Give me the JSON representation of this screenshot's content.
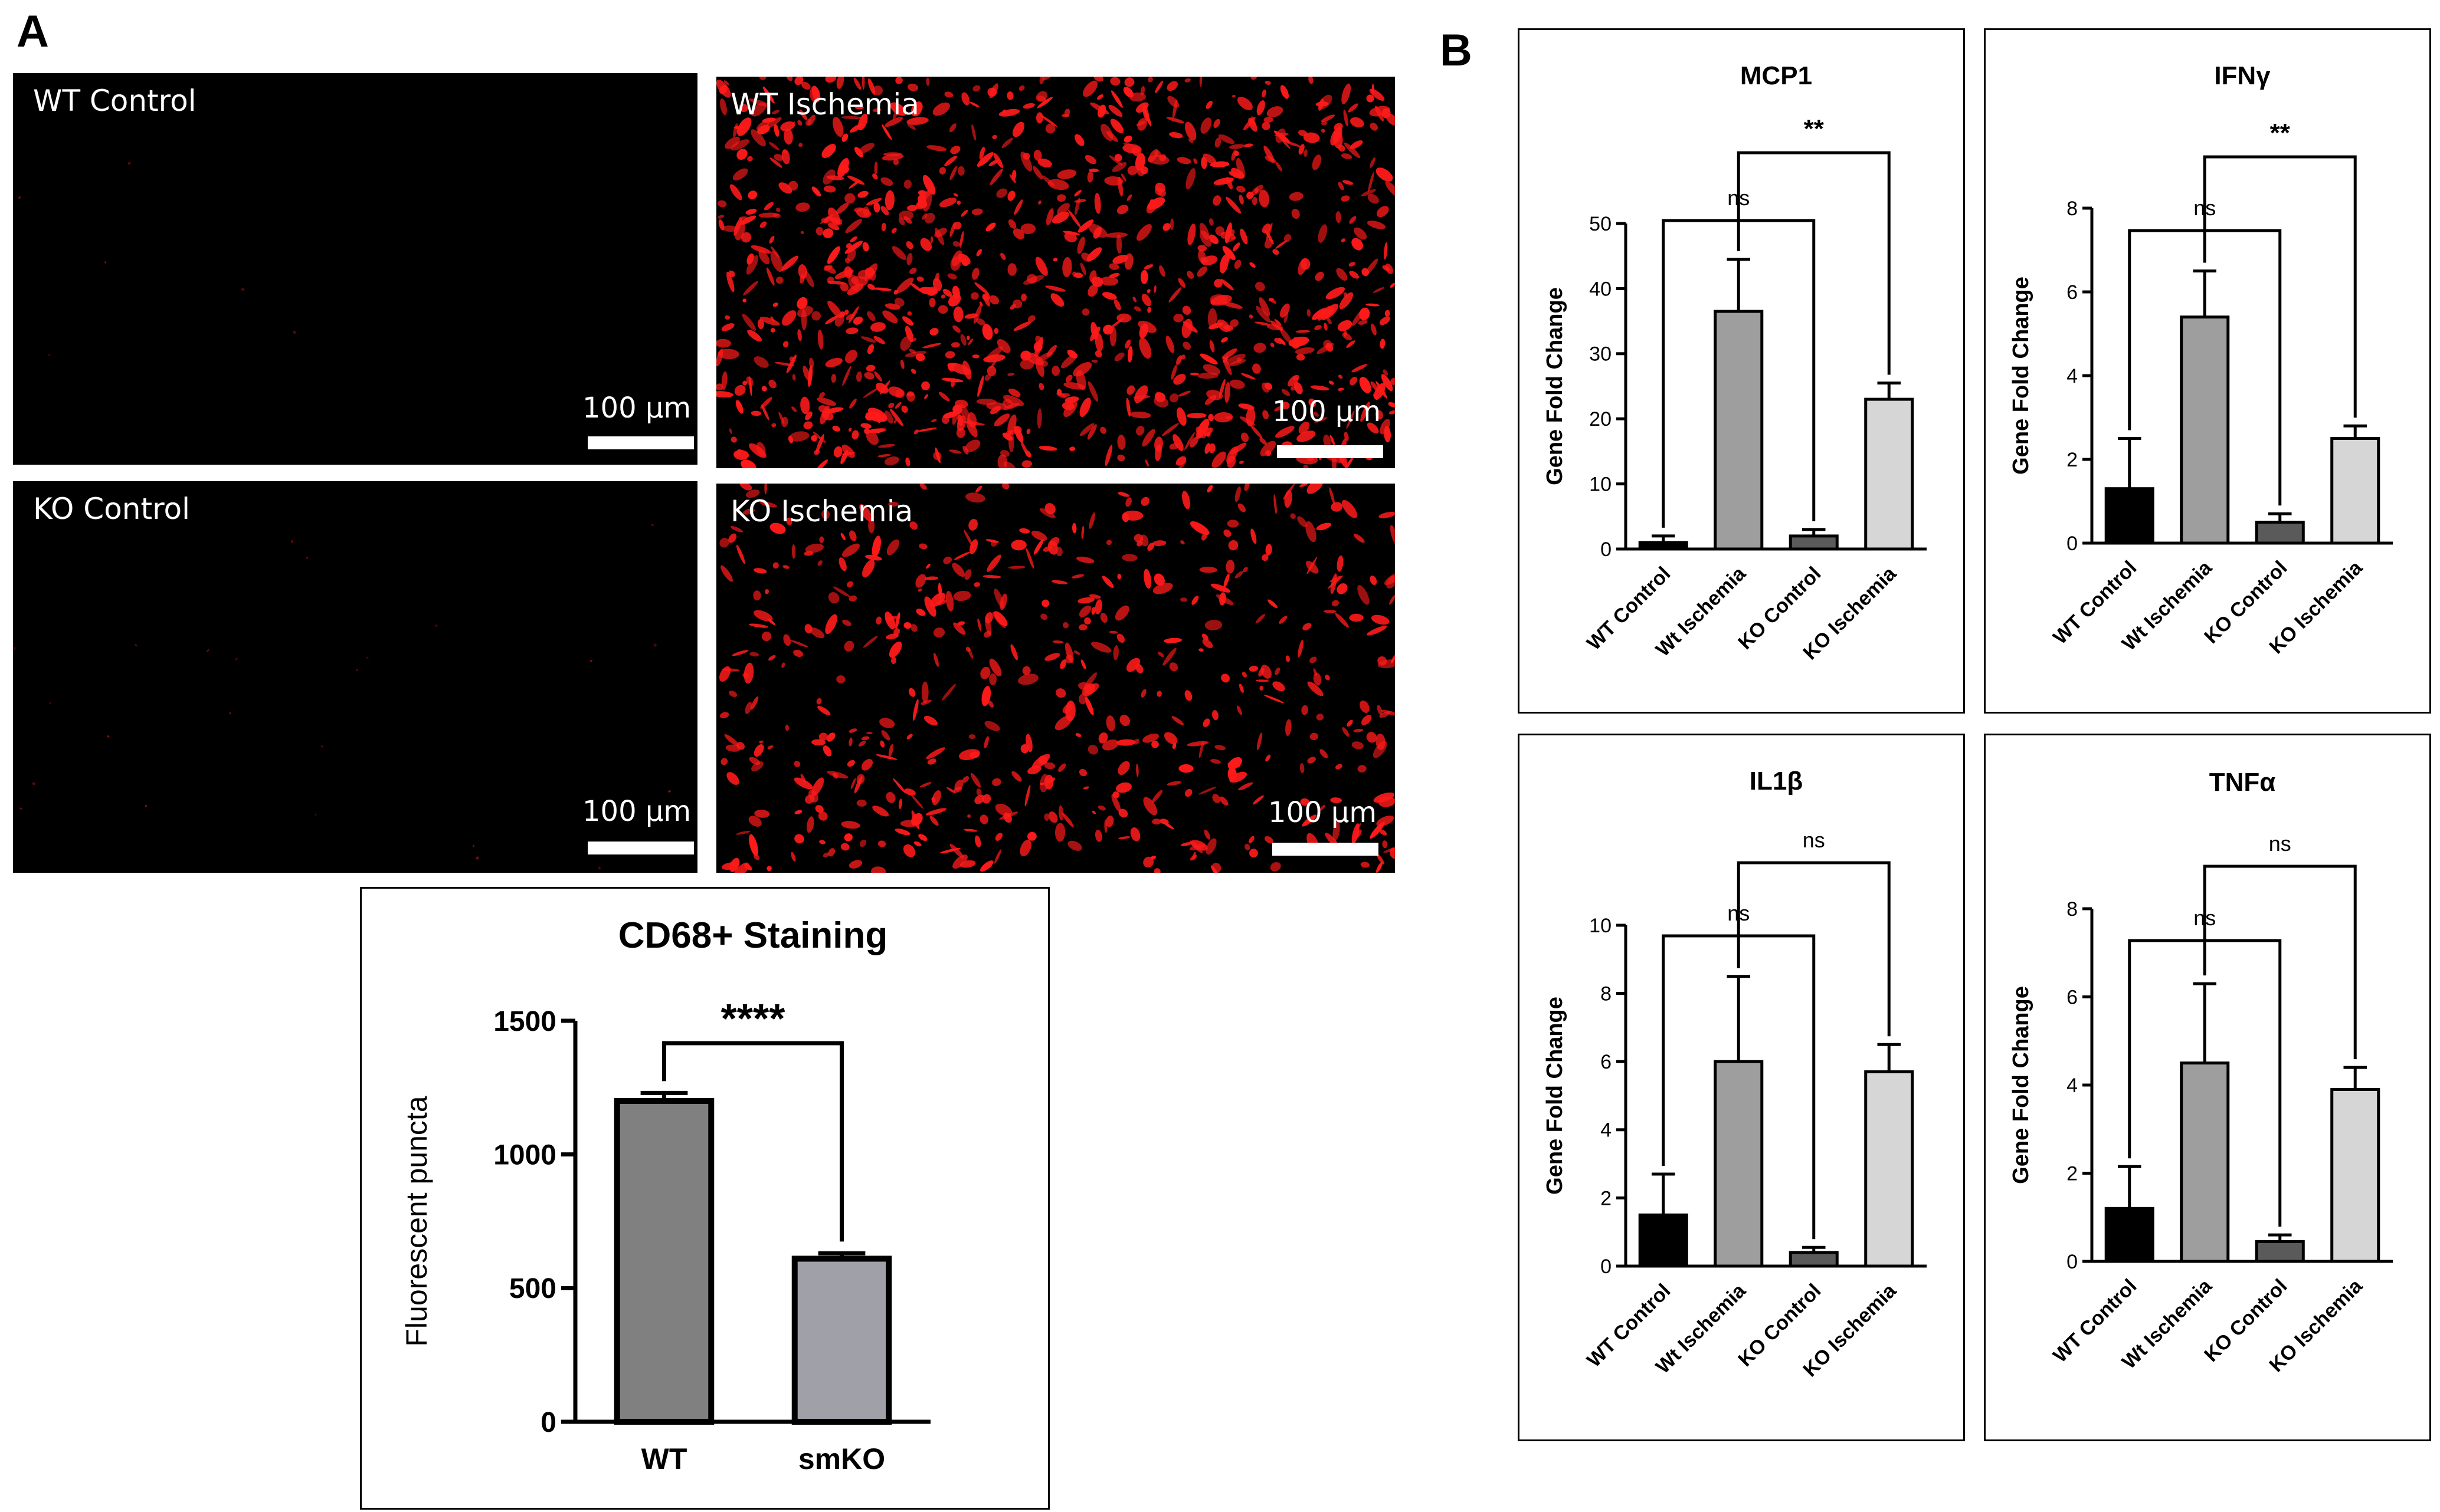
{
  "panels": {
    "a": "A",
    "b": "B"
  },
  "micrographs": [
    {
      "label": "WT Control",
      "scale": "100 µm",
      "density": 0.0
    },
    {
      "label": "WT Ischemia",
      "scale": "100 µm",
      "density": 0.55
    },
    {
      "label": "KO Control",
      "scale": "100 µm",
      "density": 0.01
    },
    {
      "label": "KO Ischemia",
      "scale": "100 µm",
      "density": 0.3
    }
  ],
  "colors": {
    "stain": "#ff1a1a",
    "wt_bar": "#808080",
    "smko_bar": "#a0a0a8",
    "wt_control": "#000000",
    "wt_ischemia": "#9e9e9e",
    "ko_control": "#5a5a5a",
    "ko_ischemia": "#d6d6d6"
  },
  "chart_data": [
    {
      "type": "bar",
      "title": "CD68+ Staining",
      "ylabel": "Fluorescent puncta",
      "categories": [
        "WT",
        "smKO"
      ],
      "values": [
        1200,
        610
      ],
      "errors": [
        30,
        20
      ],
      "ylim": [
        0,
        1500
      ],
      "yticks": [
        "0",
        "500",
        "1000",
        "1500"
      ],
      "sig": [
        {
          "label": "****",
          "from": 0,
          "to": 1
        }
      ]
    },
    {
      "type": "bar",
      "title": "MCP1",
      "ylabel": "Gene Fold Change",
      "categories": [
        "WT Control",
        "Wt Ischemia",
        "KO Control",
        "KO Ischemia"
      ],
      "values": [
        1,
        36.5,
        2,
        23
      ],
      "errors": [
        1,
        8,
        1,
        2.5
      ],
      "ylim": [
        0,
        50
      ],
      "yticks": [
        "0",
        "10",
        "20",
        "30",
        "40",
        "50"
      ],
      "sig": [
        {
          "label": "ns",
          "from": 0,
          "to": 2
        },
        {
          "label": "**",
          "from": 1,
          "to": 3
        }
      ]
    },
    {
      "type": "bar",
      "title": "IFNγ",
      "ylabel": "Gene Fold Change",
      "categories": [
        "WT Control",
        "Wt Ischemia",
        "KO Control",
        "KO Ischemia"
      ],
      "values": [
        1.3,
        5.4,
        0.5,
        2.5
      ],
      "errors": [
        1.2,
        1.1,
        0.2,
        0.3
      ],
      "ylim": [
        0,
        8
      ],
      "yticks": [
        "0",
        "2",
        "4",
        "6",
        "8"
      ],
      "sig": [
        {
          "label": "ns",
          "from": 0,
          "to": 2
        },
        {
          "label": "**",
          "from": 1,
          "to": 3
        }
      ]
    },
    {
      "type": "bar",
      "title": "IL1β",
      "ylabel": "Gene Fold Change",
      "categories": [
        "WT Control",
        "Wt Ischemia",
        "KO Control",
        "KO Ischemia"
      ],
      "values": [
        1.5,
        6,
        0.4,
        5.7
      ],
      "errors": [
        1.2,
        2.5,
        0.15,
        0.8
      ],
      "ylim": [
        0,
        10
      ],
      "yticks": [
        "0",
        "2",
        "4",
        "6",
        "8",
        "10"
      ],
      "sig": [
        {
          "label": "ns",
          "from": 0,
          "to": 2
        },
        {
          "label": "ns",
          "from": 1,
          "to": 3
        }
      ]
    },
    {
      "type": "bar",
      "title": "TNFα",
      "ylabel": "Gene Fold Change",
      "categories": [
        "WT Control",
        "Wt Ischemia",
        "KO Control",
        "KO Ischemia"
      ],
      "values": [
        1.2,
        4.5,
        0.45,
        3.9
      ],
      "errors": [
        0.95,
        1.8,
        0.15,
        0.5
      ],
      "ylim": [
        0,
        8
      ],
      "yticks": [
        "0",
        "2",
        "4",
        "6",
        "8"
      ],
      "sig": [
        {
          "label": "ns",
          "from": 0,
          "to": 2
        },
        {
          "label": "ns",
          "from": 1,
          "to": 3
        }
      ]
    }
  ]
}
